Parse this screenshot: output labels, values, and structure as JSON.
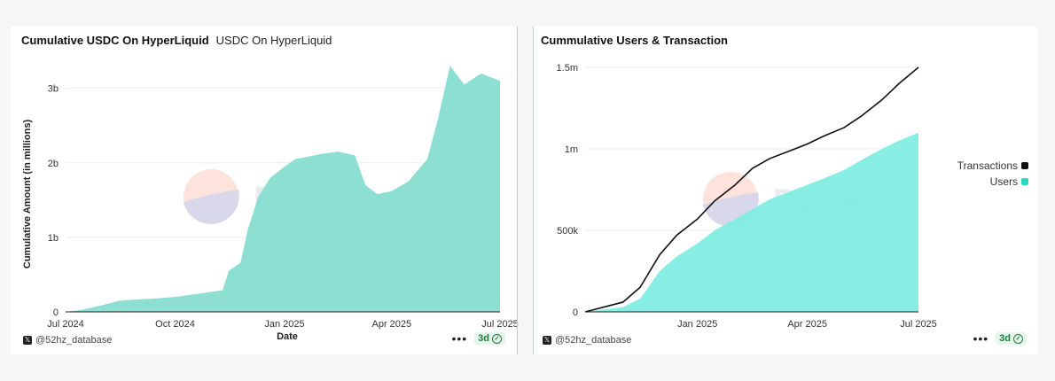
{
  "footer": {
    "handle": "@52hz_database",
    "menu": "•••",
    "badge": "3d"
  },
  "colors": {
    "area": "#87ddd0",
    "users_area": "#82ece0",
    "transactions_line": "#111111",
    "watermark_text": "#e8ecef"
  },
  "watermark": {
    "brand": "Dune"
  },
  "chart_data": [
    {
      "type": "area",
      "title": "Cumulative USDC On HyperLiquid",
      "subtitle": "USDC On HyperLiquid",
      "xlabel": "Date",
      "ylabel": "Cumulative Amount (in millions)",
      "x_ticks": [
        "Jul 2024",
        "Oct 2024",
        "Jan 2025",
        "Apr 2025",
        "Jul 2025"
      ],
      "y_ticks": [
        "0",
        "1b",
        "2b",
        "3b"
      ],
      "ylim": [
        0,
        3400
      ],
      "series": [
        {
          "x": [
            "2024-07-01",
            "2024-07-15",
            "2024-08-01",
            "2024-08-15",
            "2024-09-01",
            "2024-09-15",
            "2024-10-01",
            "2024-10-15",
            "2024-11-01",
            "2024-11-10",
            "2024-11-15",
            "2024-11-25",
            "2024-12-01",
            "2024-12-10",
            "2024-12-20",
            "2025-01-01",
            "2025-01-10",
            "2025-01-20",
            "2025-02-01",
            "2025-02-15",
            "2025-03-01",
            "2025-03-10",
            "2025-03-20",
            "2025-04-01",
            "2025-04-15",
            "2025-05-01",
            "2025-05-10",
            "2025-05-20",
            "2025-06-01",
            "2025-06-15",
            "2025-07-01"
          ],
          "values": [
            0,
            30,
            90,
            150,
            170,
            180,
            200,
            230,
            270,
            290,
            550,
            660,
            1100,
            1550,
            1800,
            1950,
            2050,
            2080,
            2120,
            2150,
            2100,
            1700,
            1580,
            1620,
            1750,
            2050,
            2600,
            3300,
            3050,
            3200,
            3100
          ]
        }
      ]
    },
    {
      "type": "area",
      "title": "Cummulative Users & Transaction",
      "x_ticks": [
        "Jan 2025",
        "Apr 2025",
        "Jul 2025"
      ],
      "y_ticks": [
        "0",
        "500k",
        "1m",
        "1.5m"
      ],
      "ylim": [
        0,
        1500000
      ],
      "x": [
        "2024-10-01",
        "2024-11-01",
        "2024-11-15",
        "2024-12-01",
        "2024-12-15",
        "2025-01-01",
        "2025-01-15",
        "2025-02-01",
        "2025-02-15",
        "2025-03-01",
        "2025-03-15",
        "2025-04-01",
        "2025-04-15",
        "2025-05-01",
        "2025-05-15",
        "2025-06-01",
        "2025-06-15",
        "2025-07-01"
      ],
      "series": [
        {
          "name": "Transactions",
          "values": [
            0,
            60000,
            150000,
            350000,
            470000,
            570000,
            680000,
            780000,
            880000,
            940000,
            980000,
            1030000,
            1080000,
            1130000,
            1200000,
            1300000,
            1400000,
            1500000
          ]
        },
        {
          "name": "Users",
          "values": [
            0,
            30000,
            80000,
            250000,
            340000,
            420000,
            500000,
            570000,
            630000,
            690000,
            730000,
            780000,
            820000,
            870000,
            930000,
            1000000,
            1050000,
            1100000
          ]
        }
      ],
      "legend": "right"
    }
  ]
}
